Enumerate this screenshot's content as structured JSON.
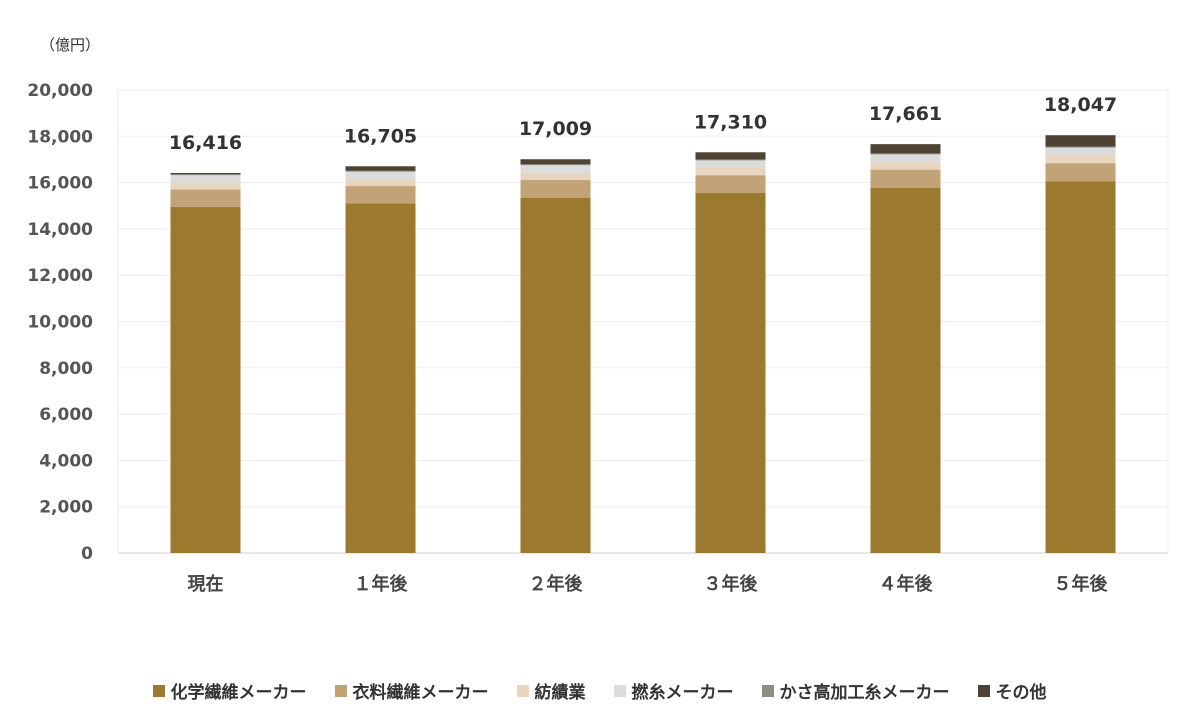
{
  "chart_data": {
    "type": "bar",
    "stacked": true,
    "unit_label": "（億円）",
    "categories": [
      "現在",
      "１年後",
      "２年後",
      "３年後",
      "４年後",
      "５年後"
    ],
    "totals": [
      "16,416",
      "16,705",
      "17,009",
      "17,310",
      "17,661",
      "18,047"
    ],
    "ylim": [
      0,
      20000
    ],
    "yticks": [
      "0",
      "2,000",
      "4,000",
      "6,000",
      "8,000",
      "10,000",
      "12,000",
      "14,000",
      "16,000",
      "18,000",
      "20,000"
    ],
    "ytick_values": [
      0,
      2000,
      4000,
      6000,
      8000,
      10000,
      12000,
      14000,
      16000,
      18000,
      20000
    ],
    "grid": true,
    "legend_position": "bottom",
    "series": [
      {
        "name": "化学繊維メーカー",
        "color": "#9b7a2f",
        "values": [
          14950,
          15100,
          15350,
          15550,
          15780,
          16050
        ]
      },
      {
        "name": "衣料繊維メーカー",
        "color": "#c2a277",
        "values": [
          750,
          750,
          760,
          770,
          780,
          790
        ]
      },
      {
        "name": "紡績業",
        "color": "#e8d5bd",
        "values": [
          300,
          300,
          310,
          310,
          320,
          330
        ]
      },
      {
        "name": "撚糸メーカー",
        "color": "#dcdcdc",
        "values": [
          320,
          320,
          330,
          330,
          340,
          340
        ]
      },
      {
        "name": "かさ高加工糸メーカー",
        "color": "#8e8e86",
        "values": [
          40,
          40,
          40,
          40,
          40,
          40
        ]
      },
      {
        "name": "その他",
        "color": "#4d4234",
        "values": [
          56,
          195,
          219,
          310,
          401,
          497
        ]
      }
    ]
  }
}
